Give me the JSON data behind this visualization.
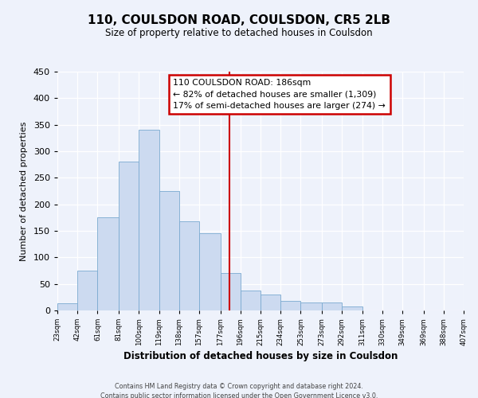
{
  "title": "110, COULSDON ROAD, COULSDON, CR5 2LB",
  "subtitle": "Size of property relative to detached houses in Coulsdon",
  "xlabel": "Distribution of detached houses by size in Coulsdon",
  "ylabel": "Number of detached properties",
  "bar_edges": [
    23,
    42,
    61,
    81,
    100,
    119,
    138,
    157,
    177,
    196,
    215,
    234,
    253,
    273,
    292,
    311,
    330,
    349,
    369,
    388,
    407
  ],
  "bar_heights": [
    13,
    75,
    175,
    280,
    340,
    225,
    168,
    145,
    70,
    38,
    30,
    18,
    15,
    15,
    8,
    0,
    0,
    0,
    0,
    0
  ],
  "bar_color": "#ccdaf0",
  "bar_edgecolor": "#7aaad0",
  "ylim": [
    0,
    450
  ],
  "vline_x": 186,
  "vline_color": "#cc0000",
  "annotation_title": "110 COULSDON ROAD: 186sqm",
  "annotation_line1": "← 82% of detached houses are smaller (1,309)",
  "annotation_line2": "17% of semi-detached houses are larger (274) →",
  "footer1": "Contains HM Land Registry data © Crown copyright and database right 2024.",
  "footer2": "Contains public sector information licensed under the Open Government Licence v3.0.",
  "tick_labels": [
    "23sqm",
    "42sqm",
    "61sqm",
    "81sqm",
    "100sqm",
    "119sqm",
    "138sqm",
    "157sqm",
    "177sqm",
    "196sqm",
    "215sqm",
    "234sqm",
    "253sqm",
    "273sqm",
    "292sqm",
    "311sqm",
    "330sqm",
    "349sqm",
    "369sqm",
    "388sqm",
    "407sqm"
  ],
  "yticks": [
    0,
    50,
    100,
    150,
    200,
    250,
    300,
    350,
    400,
    450
  ],
  "background_color": "#eef2fb"
}
